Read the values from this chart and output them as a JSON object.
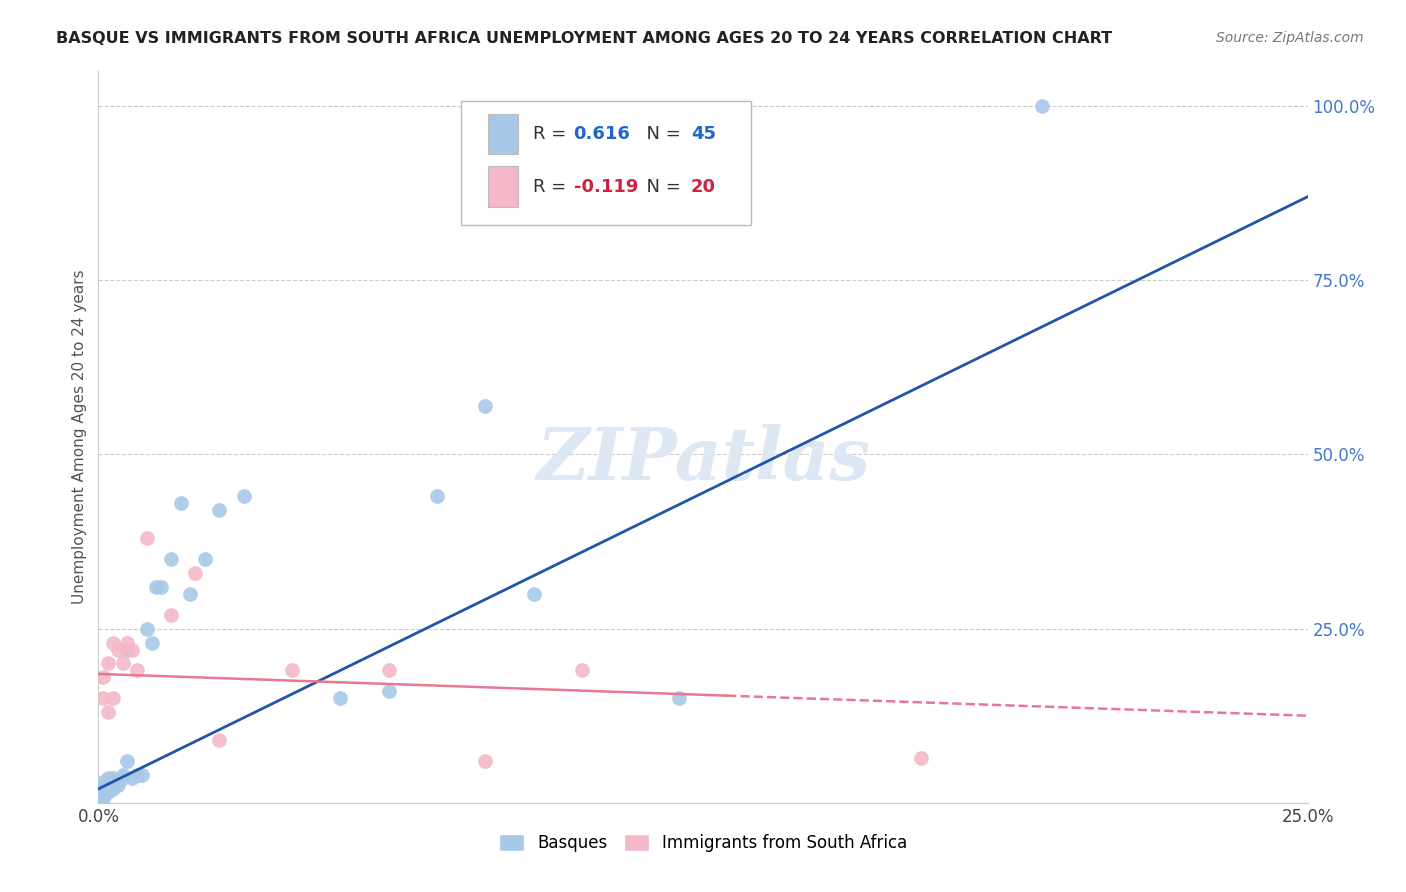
{
  "title": "BASQUE VS IMMIGRANTS FROM SOUTH AFRICA UNEMPLOYMENT AMONG AGES 20 TO 24 YEARS CORRELATION CHART",
  "source": "Source: ZipAtlas.com",
  "ylabel": "Unemployment Among Ages 20 to 24 years",
  "xlim": [
    0.0,
    0.25
  ],
  "ylim": [
    0.0,
    1.05
  ],
  "x_ticks": [
    0.0,
    0.05,
    0.1,
    0.15,
    0.2,
    0.25
  ],
  "x_tick_labels": [
    "0.0%",
    "",
    "",
    "",
    "",
    "25.0%"
  ],
  "y_ticks": [
    0.0,
    0.25,
    0.5,
    0.75,
    1.0
  ],
  "y_tick_labels": [
    "",
    "25.0%",
    "50.0%",
    "75.0%",
    "100.0%"
  ],
  "background_color": "#ffffff",
  "grid_color": "#cccccc",
  "watermark_text": "ZIPatlas",
  "blue_color": "#a8c8e8",
  "pink_color": "#f4b8c8",
  "blue_line_color": "#2255aa",
  "pink_line_color": "#e87890",
  "r_blue": "0.616",
  "n_blue": "45",
  "r_pink": "-0.119",
  "n_pink": "20",
  "legend_label_blue": "Basques",
  "legend_label_pink": "Immigrants from South Africa",
  "blue_x": [
    0.001,
    0.001,
    0.001,
    0.001,
    0.001,
    0.001,
    0.001,
    0.001,
    0.001,
    0.001,
    0.002,
    0.002,
    0.002,
    0.002,
    0.002,
    0.003,
    0.003,
    0.003,
    0.003,
    0.004,
    0.004,
    0.005,
    0.005,
    0.006,
    0.006,
    0.007,
    0.008,
    0.009,
    0.01,
    0.011,
    0.012,
    0.013,
    0.015,
    0.017,
    0.019,
    0.022,
    0.025,
    0.03,
    0.05,
    0.06,
    0.07,
    0.08,
    0.09,
    0.12,
    0.195
  ],
  "blue_y": [
    0.005,
    0.008,
    0.01,
    0.012,
    0.015,
    0.018,
    0.02,
    0.022,
    0.025,
    0.03,
    0.015,
    0.02,
    0.025,
    0.03,
    0.035,
    0.02,
    0.025,
    0.03,
    0.035,
    0.025,
    0.03,
    0.035,
    0.04,
    0.22,
    0.06,
    0.035,
    0.04,
    0.04,
    0.25,
    0.23,
    0.31,
    0.31,
    0.35,
    0.43,
    0.3,
    0.35,
    0.42,
    0.44,
    0.15,
    0.16,
    0.44,
    0.57,
    0.3,
    0.15,
    1.0
  ],
  "pink_x": [
    0.001,
    0.001,
    0.002,
    0.002,
    0.003,
    0.003,
    0.004,
    0.005,
    0.006,
    0.007,
    0.008,
    0.01,
    0.015,
    0.02,
    0.025,
    0.04,
    0.06,
    0.08,
    0.1,
    0.17
  ],
  "pink_y": [
    0.15,
    0.18,
    0.13,
    0.2,
    0.15,
    0.23,
    0.22,
    0.2,
    0.23,
    0.22,
    0.19,
    0.38,
    0.27,
    0.33,
    0.09,
    0.19,
    0.19,
    0.06,
    0.19,
    0.065
  ],
  "blue_line_x0": 0.0,
  "blue_line_y0": 0.02,
  "blue_line_x1": 0.25,
  "blue_line_y1": 0.87,
  "pink_line_x0": 0.0,
  "pink_line_y0": 0.185,
  "pink_line_x1": 0.25,
  "pink_line_y1": 0.125
}
